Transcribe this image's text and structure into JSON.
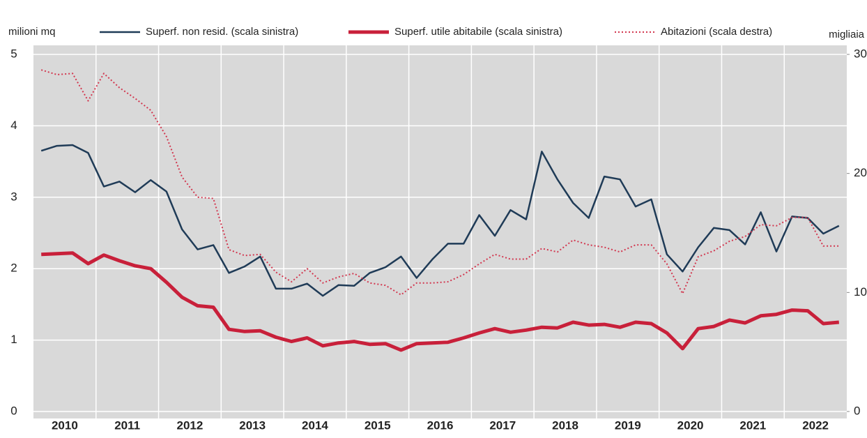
{
  "chart_data": {
    "type": "line",
    "y_label": "milioni mq",
    "y2_label": "migliaia",
    "categories": [
      "2010",
      null,
      null,
      null,
      "2011",
      null,
      null,
      null,
      "2012",
      null,
      null,
      null,
      "2013",
      null,
      null,
      null,
      "2014",
      null,
      null,
      null,
      "2015",
      null,
      null,
      null,
      "2016",
      null,
      null,
      null,
      "2017",
      null,
      null,
      null,
      "2018",
      null,
      null,
      null,
      "2019",
      null,
      null,
      null,
      "2020",
      null,
      null,
      null,
      "2021",
      null,
      null,
      null,
      "2022",
      null,
      null,
      null
    ],
    "series": [
      {
        "name": "Superf. non resid. (scala sinistra)",
        "color": "#1f3b57",
        "style": "solid",
        "values": [
          3.65,
          3.72,
          3.73,
          3.62,
          3.15,
          3.22,
          3.07,
          3.24,
          3.08,
          2.55,
          2.27,
          2.33,
          1.94,
          2.03,
          2.17,
          1.72,
          1.72,
          1.79,
          1.62,
          1.77,
          1.76,
          1.94,
          2.02,
          2.17,
          1.87,
          2.13,
          2.35,
          2.35,
          2.75,
          2.46,
          2.82,
          2.69,
          3.64,
          3.25,
          2.92,
          2.71,
          3.29,
          3.25,
          2.87,
          2.97,
          2.2,
          1.96,
          2.3,
          2.57,
          2.54,
          2.34,
          2.79,
          2.24,
          2.73,
          2.71,
          2.49,
          2.6
        ]
      },
      {
        "name": "Superf. utile abitabile (scala sinistra)",
        "color": "#c8203a",
        "style": "thick",
        "values": [
          2.2,
          2.21,
          2.22,
          2.07,
          2.19,
          2.11,
          2.04,
          2.0,
          1.81,
          1.6,
          1.48,
          1.46,
          1.15,
          1.12,
          1.13,
          1.04,
          0.98,
          1.03,
          0.92,
          0.96,
          0.98,
          0.94,
          0.95,
          0.86,
          0.95,
          0.96,
          0.97,
          1.03,
          1.1,
          1.16,
          1.11,
          1.14,
          1.18,
          1.17,
          1.25,
          1.21,
          1.22,
          1.18,
          1.25,
          1.23,
          1.1,
          0.88,
          1.16,
          1.19,
          1.28,
          1.24,
          1.34,
          1.36,
          1.42,
          1.41,
          1.23,
          1.25
        ]
      },
      {
        "name": "Abitazioni (scala destra)",
        "color": "#d2374f",
        "style": "dotted",
        "axis": "y2",
        "values": [
          28.7,
          28.3,
          28.4,
          26.1,
          28.4,
          27.2,
          26.3,
          25.3,
          23.1,
          19.7,
          18.0,
          17.9,
          13.6,
          13.1,
          13.2,
          11.7,
          10.9,
          12.0,
          10.8,
          11.3,
          11.6,
          10.8,
          10.6,
          9.8,
          10.8,
          10.8,
          10.9,
          11.5,
          12.4,
          13.2,
          12.8,
          12.8,
          13.7,
          13.4,
          14.4,
          14.0,
          13.8,
          13.4,
          14.0,
          14.0,
          12.4,
          9.9,
          13.0,
          13.5,
          14.3,
          14.7,
          15.7,
          15.6,
          16.3,
          16.3,
          13.9,
          13.9
        ]
      }
    ],
    "ylim": [
      0,
      5
    ],
    "yticks": [
      0,
      1,
      2,
      3,
      4,
      5
    ],
    "y2lim": [
      0,
      30
    ],
    "y2ticks": [
      0,
      10,
      20,
      30
    ],
    "grid": true
  }
}
